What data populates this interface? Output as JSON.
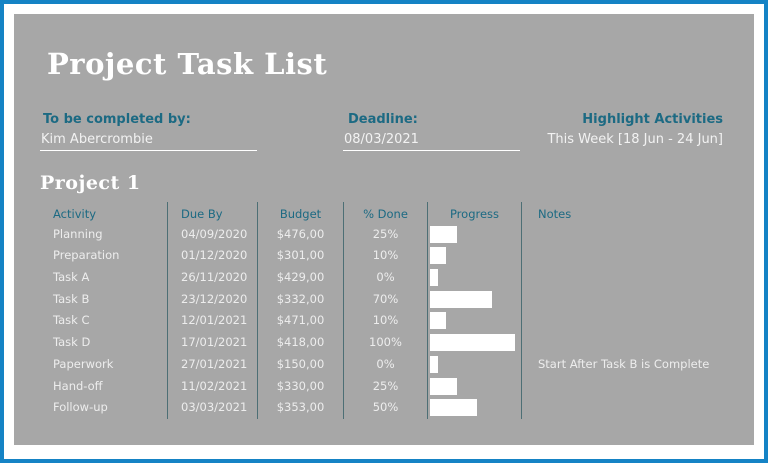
{
  "page": {
    "title": "Project Task List",
    "section_title": "Project 1"
  },
  "meta": {
    "completed_by_label": "To be completed by:",
    "completed_by_value": "Kim Abercrombie",
    "deadline_label": "Deadline:",
    "deadline_value": "08/03/2021",
    "highlight_label": "Highlight Activities",
    "highlight_value": "This Week [18 Jun - 24 Jun]"
  },
  "table": {
    "columns": [
      "Activity",
      "Due By",
      "Budget",
      "% Done",
      "Progress",
      "Notes"
    ],
    "rows": [
      {
        "activity": "Planning",
        "due_by": "04/09/2020",
        "budget": "$476,00",
        "pct_done": "25%",
        "progress": 25,
        "notes": ""
      },
      {
        "activity": "Preparation",
        "due_by": "01/12/2020",
        "budget": "$301,00",
        "pct_done": "10%",
        "progress": 10,
        "notes": ""
      },
      {
        "activity": "Task A",
        "due_by": "26/11/2020",
        "budget": "$429,00",
        "pct_done": "0%",
        "progress": 0,
        "notes": ""
      },
      {
        "activity": "Task B",
        "due_by": "23/12/2020",
        "budget": "$332,00",
        "pct_done": "70%",
        "progress": 70,
        "notes": ""
      },
      {
        "activity": "Task C",
        "due_by": "12/01/2021",
        "budget": "$471,00",
        "pct_done": "10%",
        "progress": 10,
        "notes": ""
      },
      {
        "activity": "Task D",
        "due_by": "17/01/2021",
        "budget": "$418,00",
        "pct_done": "100%",
        "progress": 100,
        "notes": ""
      },
      {
        "activity": "Paperwork",
        "due_by": "27/01/2021",
        "budget": "$150,00",
        "pct_done": "0%",
        "progress": 0,
        "notes": "Start After Task B is Complete"
      },
      {
        "activity": "Hand-off",
        "due_by": "11/02/2021",
        "budget": "$330,00",
        "pct_done": "25%",
        "progress": 25,
        "notes": ""
      },
      {
        "activity": "Follow-up",
        "due_by": "03/03/2021",
        "budget": "$353,00",
        "pct_done": "50%",
        "progress": 50,
        "notes": ""
      }
    ]
  },
  "colors": {
    "border_blue": "#1583c5",
    "panel_gray": "#a7a7a7",
    "teal_text": "#1c6a83",
    "divider_teal": "#4d6f75",
    "bar_white": "#ffffff"
  }
}
